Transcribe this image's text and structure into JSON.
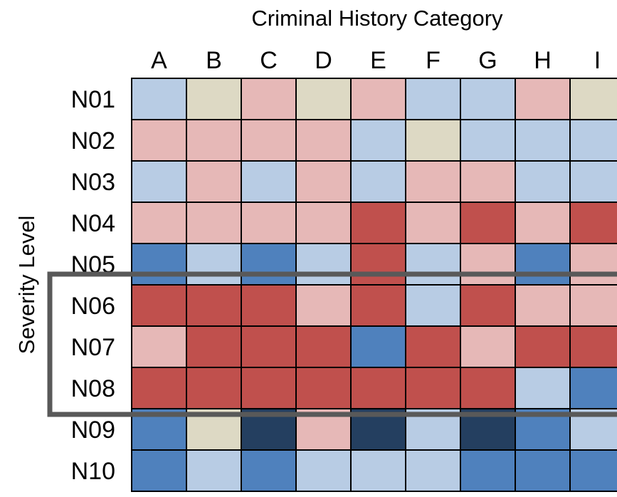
{
  "chart_data": {
    "type": "heatmap",
    "xlabel": "Criminal History Category",
    "ylabel": "Severity Level",
    "columns": [
      "A",
      "B",
      "C",
      "D",
      "E",
      "F",
      "G",
      "H",
      "I"
    ],
    "rows": [
      "N01",
      "N02",
      "N03",
      "N04",
      "N05",
      "N06",
      "N07",
      "N08",
      "N09",
      "N10"
    ],
    "cell_classes": [
      [
        "light-blue",
        "beige",
        "light-red",
        "beige",
        "light-red",
        "light-blue",
        "light-blue",
        "light-red",
        "beige"
      ],
      [
        "light-red",
        "light-red",
        "light-red",
        "light-red",
        "light-blue",
        "beige",
        "light-blue",
        "light-blue",
        "light-blue"
      ],
      [
        "light-blue",
        "light-red",
        "light-blue",
        "light-red",
        "light-blue",
        "light-red",
        "light-red",
        "light-blue",
        "light-blue"
      ],
      [
        "light-red",
        "light-red",
        "light-red",
        "light-red",
        "dark-red",
        "light-red",
        "dark-red",
        "light-red",
        "dark-red"
      ],
      [
        "medium-blue",
        "light-blue",
        "medium-blue",
        "light-blue",
        "dark-red",
        "light-blue",
        "light-red",
        "medium-blue",
        "light-red"
      ],
      [
        "dark-red",
        "dark-red",
        "dark-red",
        "light-red",
        "dark-red",
        "light-blue",
        "dark-red",
        "light-red",
        "light-red"
      ],
      [
        "light-red",
        "dark-red",
        "dark-red",
        "dark-red",
        "medium-blue",
        "dark-red",
        "light-red",
        "dark-red",
        "dark-red"
      ],
      [
        "dark-red",
        "dark-red",
        "dark-red",
        "dark-red",
        "dark-red",
        "dark-red",
        "dark-red",
        "light-blue",
        "medium-blue"
      ],
      [
        "medium-blue",
        "beige",
        "navy",
        "light-red",
        "navy",
        "light-blue",
        "navy",
        "medium-blue",
        "light-blue"
      ],
      [
        "medium-blue",
        "light-blue",
        "medium-blue",
        "light-blue",
        "light-blue",
        "light-blue",
        "medium-blue",
        "medium-blue",
        "medium-blue"
      ]
    ],
    "colors": {
      "light-blue": "#b8cce4",
      "medium-blue": "#4f81bd",
      "navy": "#243f60",
      "light-red": "#e6b8b7",
      "dark-red": "#c0504d",
      "beige": "#ddd9c4"
    },
    "highlight_rows": [
      "N06",
      "N07",
      "N08"
    ],
    "highlight_color": "#595959",
    "grid_color": "#000000"
  }
}
